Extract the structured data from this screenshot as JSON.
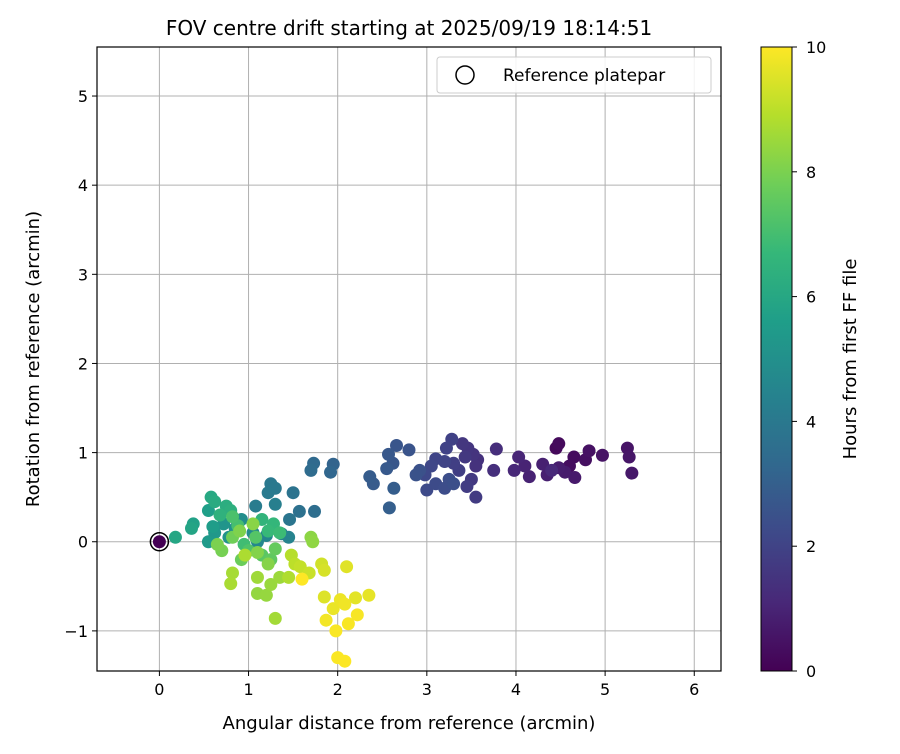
{
  "chart_data": {
    "type": "scatter",
    "title": "FOV centre drift starting at 2025/09/19 18:14:51",
    "xlabel": "Angular distance from reference (arcmin)",
    "ylabel": "Rotation from reference (arcmin)",
    "xlim": [
      -0.7,
      6.3
    ],
    "ylim": [
      -1.45,
      5.55
    ],
    "xticks": [
      "0",
      "1",
      "2",
      "3",
      "4",
      "5",
      "6"
    ],
    "yticks": [
      "−1",
      "0",
      "1",
      "2",
      "3",
      "4",
      "5"
    ],
    "grid": true,
    "legend": {
      "label": "Reference platepar",
      "location": "top-right"
    },
    "reference_point": {
      "x": 0,
      "y": 0,
      "hours": 0
    },
    "colorbar": {
      "label": "Hours from first FF file",
      "range": [
        0,
        10
      ],
      "ticks": [
        "0",
        "2",
        "4",
        "6",
        "8",
        "10"
      ],
      "colormap": [
        "#440154",
        "#482878",
        "#3e4989",
        "#31688e",
        "#26828e",
        "#1f9e89",
        "#35b779",
        "#6ece58",
        "#b5de2b",
        "#fde725"
      ]
    },
    "series": [
      {
        "name": "FOV centre drift",
        "points": [
          [
            0.0,
            0.0,
            0.0
          ],
          [
            4.45,
            1.05,
            0.2
          ],
          [
            4.48,
            1.1,
            0.25
          ],
          [
            4.65,
            0.95,
            0.3
          ],
          [
            4.6,
            0.85,
            0.35
          ],
          [
            4.78,
            0.92,
            0.4
          ],
          [
            4.82,
            1.02,
            0.45
          ],
          [
            4.97,
            0.97,
            0.5
          ],
          [
            5.25,
            1.05,
            0.55
          ],
          [
            5.27,
            0.95,
            0.6
          ],
          [
            5.3,
            0.77,
            0.65
          ],
          [
            4.66,
            0.72,
            0.7
          ],
          [
            4.55,
            0.78,
            0.75
          ],
          [
            4.48,
            0.83,
            0.8
          ],
          [
            4.35,
            0.75,
            0.85
          ],
          [
            4.3,
            0.87,
            0.9
          ],
          [
            4.15,
            0.73,
            0.95
          ],
          [
            4.1,
            0.85,
            1.0
          ],
          [
            4.03,
            0.95,
            1.05
          ],
          [
            3.98,
            0.8,
            1.1
          ],
          [
            4.4,
            0.8,
            1.15
          ],
          [
            3.78,
            1.04,
            1.3
          ],
          [
            3.75,
            0.8,
            1.35
          ],
          [
            3.57,
            0.92,
            1.4
          ],
          [
            3.55,
            0.85,
            1.45
          ],
          [
            3.52,
            0.98,
            1.5
          ],
          [
            3.46,
            1.05,
            1.55
          ],
          [
            3.4,
            1.1,
            1.6
          ],
          [
            3.43,
            0.95,
            1.65
          ],
          [
            3.5,
            0.7,
            1.7
          ],
          [
            3.55,
            0.5,
            1.75
          ],
          [
            3.45,
            0.62,
            1.8
          ],
          [
            3.36,
            0.8,
            1.85
          ],
          [
            3.3,
            0.88,
            1.9
          ],
          [
            3.28,
            1.15,
            1.95
          ],
          [
            3.22,
            1.05,
            2.0
          ],
          [
            3.2,
            0.9,
            2.05
          ],
          [
            3.1,
            0.93,
            2.1
          ],
          [
            3.05,
            0.85,
            2.15
          ],
          [
            2.98,
            0.75,
            2.2
          ],
          [
            3.0,
            0.58,
            2.25
          ],
          [
            3.1,
            0.65,
            2.3
          ],
          [
            3.2,
            0.6,
            2.35
          ],
          [
            3.25,
            0.7,
            2.4
          ],
          [
            3.3,
            0.65,
            2.45
          ],
          [
            2.92,
            0.8,
            2.5
          ],
          [
            2.88,
            0.75,
            2.55
          ],
          [
            2.8,
            1.03,
            2.6
          ],
          [
            2.66,
            1.08,
            2.65
          ],
          [
            2.62,
            0.88,
            2.7
          ],
          [
            2.57,
            0.98,
            2.75
          ],
          [
            2.55,
            0.82,
            2.8
          ],
          [
            2.4,
            0.65,
            2.85
          ],
          [
            2.36,
            0.73,
            2.9
          ],
          [
            2.63,
            0.6,
            2.95
          ],
          [
            2.58,
            0.38,
            3.0
          ],
          [
            1.95,
            0.87,
            3.2
          ],
          [
            1.92,
            0.78,
            3.3
          ],
          [
            1.73,
            0.88,
            3.4
          ],
          [
            1.7,
            0.8,
            3.5
          ],
          [
            1.74,
            0.34,
            3.6
          ],
          [
            1.57,
            0.34,
            3.7
          ],
          [
            1.5,
            0.55,
            3.8
          ],
          [
            1.46,
            0.25,
            3.9
          ],
          [
            1.25,
            0.65,
            4.0
          ],
          [
            1.3,
            0.6,
            4.05
          ],
          [
            1.22,
            0.55,
            4.1
          ],
          [
            1.08,
            0.4,
            4.2
          ],
          [
            1.3,
            0.42,
            4.3
          ],
          [
            1.37,
            0.09,
            4.4
          ],
          [
            1.45,
            0.05,
            4.5
          ],
          [
            1.2,
            0.07,
            4.6
          ],
          [
            1.1,
            0.0,
            4.7
          ],
          [
            1.05,
            0.1,
            4.8
          ],
          [
            0.92,
            0.25,
            4.9
          ],
          [
            0.85,
            0.15,
            5.0
          ],
          [
            0.78,
            0.05,
            5.1
          ],
          [
            0.72,
            0.2,
            5.2
          ],
          [
            0.62,
            0.1,
            5.3
          ],
          [
            0.55,
            0.0,
            5.4
          ],
          [
            0.6,
            0.17,
            5.5
          ],
          [
            0.55,
            0.35,
            5.6
          ],
          [
            0.38,
            0.2,
            5.7
          ],
          [
            0.36,
            0.15,
            5.8
          ],
          [
            0.18,
            0.05,
            5.9
          ],
          [
            0.58,
            0.5,
            6.0
          ],
          [
            0.62,
            0.45,
            6.1
          ],
          [
            0.75,
            0.4,
            6.2
          ],
          [
            0.8,
            0.35,
            6.3
          ],
          [
            0.68,
            0.3,
            6.4
          ],
          [
            1.15,
            0.25,
            6.5
          ],
          [
            1.28,
            0.2,
            6.6
          ],
          [
            1.22,
            0.12,
            6.7
          ],
          [
            1.35,
            0.1,
            6.8
          ],
          [
            0.95,
            -0.03,
            6.9
          ],
          [
            0.88,
            0.18,
            7.0
          ],
          [
            0.82,
            0.28,
            7.1
          ],
          [
            1.0,
            -0.1,
            7.2
          ],
          [
            1.08,
            0.05,
            7.3
          ],
          [
            1.15,
            -0.15,
            7.4
          ],
          [
            1.25,
            -0.2,
            7.5
          ],
          [
            1.3,
            -0.08,
            7.6
          ],
          [
            0.92,
            -0.2,
            7.7
          ],
          [
            0.82,
            0.05,
            7.8
          ],
          [
            0.7,
            -0.1,
            7.9
          ],
          [
            0.65,
            -0.03,
            8.0
          ],
          [
            0.9,
            0.12,
            8.05
          ],
          [
            1.1,
            -0.12,
            8.1
          ],
          [
            1.22,
            -0.25,
            8.15
          ],
          [
            1.05,
            0.2,
            8.2
          ],
          [
            1.7,
            0.05,
            8.25
          ],
          [
            1.72,
            0.0,
            8.3
          ],
          [
            1.1,
            -0.58,
            8.35
          ],
          [
            1.2,
            -0.6,
            8.4
          ],
          [
            1.25,
            -0.48,
            8.45
          ],
          [
            1.35,
            -0.4,
            8.5
          ],
          [
            1.1,
            -0.4,
            8.55
          ],
          [
            1.3,
            -0.86,
            8.6
          ],
          [
            0.82,
            -0.35,
            8.65
          ],
          [
            0.8,
            -0.47,
            8.7
          ],
          [
            0.96,
            -0.15,
            8.75
          ],
          [
            1.45,
            -0.4,
            8.8
          ],
          [
            1.48,
            -0.15,
            8.9
          ],
          [
            1.52,
            -0.25,
            9.0
          ],
          [
            1.58,
            -0.28,
            9.1
          ],
          [
            1.68,
            -0.35,
            9.2
          ],
          [
            1.82,
            -0.25,
            9.3
          ],
          [
            1.85,
            -0.32,
            9.4
          ],
          [
            1.85,
            -0.62,
            9.5
          ],
          [
            2.1,
            -0.28,
            9.55
          ],
          [
            2.2,
            -0.63,
            9.6
          ],
          [
            2.35,
            -0.6,
            9.65
          ],
          [
            1.95,
            -0.75,
            9.7
          ],
          [
            2.03,
            -0.65,
            9.75
          ],
          [
            2.08,
            -0.7,
            9.8
          ],
          [
            1.87,
            -0.88,
            9.85
          ],
          [
            2.22,
            -0.82,
            9.9
          ],
          [
            2.12,
            -0.92,
            9.92
          ],
          [
            1.98,
            -1.0,
            9.94
          ],
          [
            2.0,
            -1.3,
            9.96
          ],
          [
            2.08,
            -1.34,
            9.98
          ],
          [
            1.6,
            -0.42,
            10.0
          ]
        ]
      }
    ]
  }
}
